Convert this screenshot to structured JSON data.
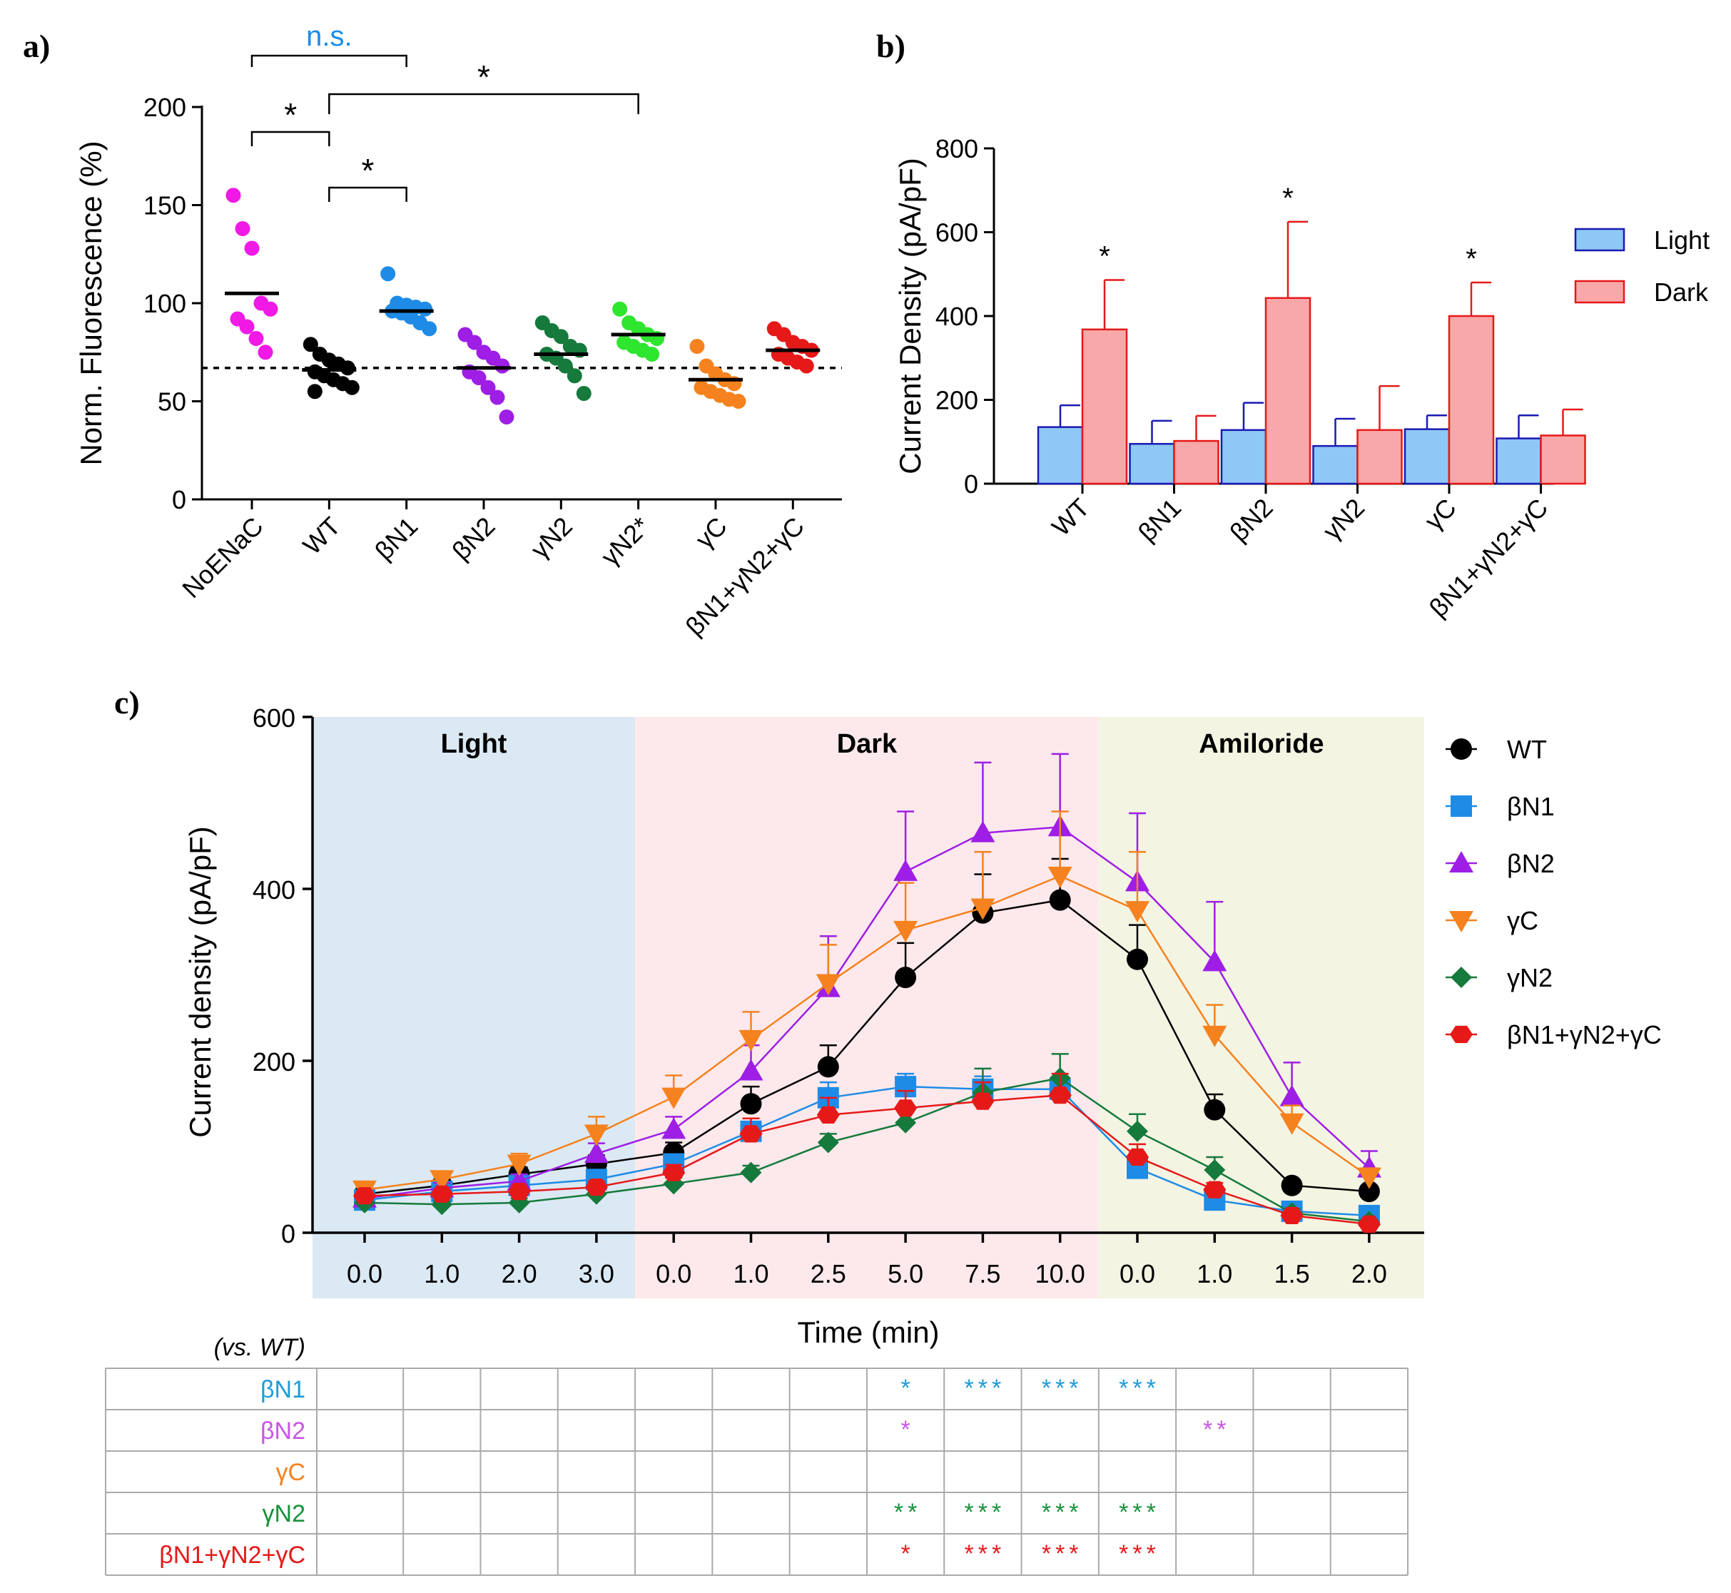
{
  "panel_labels": {
    "a": "a)",
    "b": "b)",
    "c": "c)"
  },
  "chart_data": [
    {
      "panel": "a",
      "type": "scatter",
      "ylabel": "Norm. Fluorescence (%)",
      "ylim": [
        0,
        200
      ],
      "yticks": [
        0,
        50,
        100,
        150,
        200
      ],
      "reference_line": 67,
      "categories": [
        "NoENaC",
        "WT",
        "βN1",
        "βN2",
        "γN2",
        "γN2*",
        "γC",
        "βN1+γN2+γC"
      ],
      "colors": [
        "#f019e6",
        "#000000",
        "#1e8ce6",
        "#9e1ee6",
        "#157a3c",
        "#2ee62e",
        "#f5821e",
        "#e61919"
      ],
      "points": [
        [
          155,
          138,
          128,
          100,
          97,
          92,
          88,
          82,
          75
        ],
        [
          79,
          74,
          71,
          69,
          67,
          65,
          63,
          61,
          59,
          57,
          55
        ],
        [
          115,
          100,
          99,
          98,
          97,
          96,
          95,
          93,
          90,
          87
        ],
        [
          84,
          80,
          75,
          72,
          68,
          65,
          62,
          57,
          52,
          42
        ],
        [
          90,
          86,
          83,
          78,
          76,
          74,
          72,
          68,
          63,
          54
        ],
        [
          97,
          90,
          87,
          84,
          82,
          80,
          78,
          76,
          74
        ],
        [
          78,
          68,
          64,
          61,
          59,
          57,
          55,
          53,
          51,
          50
        ],
        [
          87,
          84,
          80,
          78,
          76,
          74,
          72,
          70,
          68
        ]
      ],
      "means": [
        105,
        66,
        96,
        67,
        74,
        84,
        61,
        76
      ],
      "annotations": [
        {
          "from": "NoENaC",
          "to": "βN1",
          "label": "n.s.",
          "color": "#1e8ce6"
        },
        {
          "from": "WT",
          "to": "γN2*",
          "label": "*",
          "color": "#000000"
        },
        {
          "from": "NoENaC",
          "to": "WT",
          "label": "*",
          "color": "#000000"
        },
        {
          "from": "WT",
          "to": "βN1",
          "label": "*",
          "color": "#000000"
        }
      ]
    },
    {
      "panel": "b",
      "type": "bar",
      "ylabel": "Current Density (pA/pF)",
      "ylim": [
        0,
        800
      ],
      "yticks": [
        0,
        200,
        400,
        600,
        800
      ],
      "categories": [
        "WT",
        "βN1",
        "βN2",
        "γN2",
        "γC",
        "βN1+γN2+γC"
      ],
      "series": [
        {
          "name": "Light",
          "values": [
            135,
            95,
            128,
            90,
            130,
            108
          ],
          "errors": [
            52,
            55,
            65,
            65,
            33,
            55
          ],
          "fill": "#8ec8f5",
          "stroke": "#1a1ab3"
        },
        {
          "name": "Dark",
          "values": [
            368,
            102,
            443,
            128,
            400,
            115
          ],
          "errors": [
            118,
            60,
            182,
            105,
            80,
            62
          ],
          "fill": "#f8a8a8",
          "stroke": "#e61919"
        }
      ],
      "significance": [
        "*",
        "",
        "*",
        "",
        "*",
        ""
      ]
    },
    {
      "panel": "c",
      "type": "line",
      "xlabel": "Time (min)",
      "ylabel": "Current density (pA/pF)",
      "ylim": [
        0,
        600
      ],
      "yticks": [
        0,
        200,
        400,
        600
      ],
      "x": [
        "0.0",
        "1.0",
        "2.0",
        "3.0",
        "0.0",
        "1.0",
        "2.5",
        "5.0",
        "7.5",
        "10.0",
        "0.0",
        "1.0",
        "1.5",
        "2.0"
      ],
      "regions": [
        {
          "label": "Light",
          "start": 0,
          "end": 3,
          "color": "#dbe9f4"
        },
        {
          "label": "Dark",
          "start": 4,
          "end": 9,
          "color": "#fde9ec"
        },
        {
          "label": "Amiloride",
          "start": 10,
          "end": 13,
          "color": "#f4f4e3"
        }
      ],
      "series": [
        {
          "name": "WT",
          "marker": "circle",
          "color": "#000000",
          "fill": "#000000",
          "values": [
            45,
            55,
            68,
            80,
            93,
            150,
            193,
            297,
            372,
            387,
            318,
            143,
            55,
            48
          ],
          "errors": [
            5,
            6,
            8,
            10,
            12,
            20,
            25,
            40,
            45,
            48,
            40,
            18,
            6,
            5
          ]
        },
        {
          "name": "βN1",
          "marker": "square",
          "color": "#1e8ce6",
          "fill": "#1e8ce6",
          "values": [
            38,
            48,
            55,
            62,
            80,
            118,
            157,
            170,
            167,
            167,
            75,
            38,
            25,
            20
          ],
          "errors": [
            4,
            5,
            6,
            7,
            10,
            15,
            18,
            15,
            15,
            12,
            10,
            6,
            4,
            4
          ]
        },
        {
          "name": "βN2",
          "marker": "triangle",
          "color": "#9e1ee6",
          "fill": "#9e1ee6",
          "values": [
            40,
            52,
            60,
            92,
            120,
            188,
            285,
            420,
            465,
            472,
            408,
            315,
            158,
            75
          ],
          "errors": [
            5,
            6,
            8,
            12,
            15,
            30,
            60,
            70,
            82,
            85,
            80,
            70,
            40,
            20
          ]
        },
        {
          "name": "γC",
          "marker": "triangle-down",
          "color": "#f5821e",
          "fill": "#f5821e",
          "values": [
            50,
            62,
            80,
            115,
            158,
            225,
            290,
            352,
            378,
            415,
            375,
            230,
            128,
            65
          ],
          "errors": [
            6,
            8,
            12,
            20,
            25,
            32,
            45,
            55,
            65,
            75,
            68,
            35,
            20,
            10
          ]
        },
        {
          "name": "γN2",
          "marker": "diamond",
          "color": "#157a3c",
          "fill": "#157a3c",
          "values": [
            35,
            33,
            35,
            45,
            57,
            70,
            105,
            128,
            163,
            180,
            118,
            73,
            23,
            13
          ],
          "errors": [
            4,
            4,
            5,
            6,
            7,
            8,
            10,
            12,
            28,
            28,
            20,
            15,
            5,
            3
          ]
        },
        {
          "name": "βN1+γN2+γC",
          "marker": "hexagon",
          "color": "#e61919",
          "fill": "#e61919",
          "values": [
            43,
            45,
            48,
            53,
            70,
            115,
            137,
            145,
            153,
            160,
            88,
            50,
            20,
            10
          ],
          "errors": [
            5,
            5,
            6,
            7,
            9,
            18,
            20,
            20,
            22,
            25,
            15,
            8,
            4,
            3
          ]
        }
      ]
    }
  ],
  "significance_table": {
    "title": "(vs. WT)",
    "columns": 14,
    "rows": [
      {
        "label": "βN1",
        "color": "#1e9bd7",
        "cells": [
          "",
          "",
          "",
          "",
          "",
          "",
          "",
          "*",
          "***",
          "***",
          "***",
          "",
          "",
          ""
        ]
      },
      {
        "label": "βN2",
        "color": "#c855e6",
        "cells": [
          "",
          "",
          "",
          "",
          "",
          "",
          "",
          "*",
          "",
          "",
          "",
          "**",
          "",
          ""
        ]
      },
      {
        "label": "γC",
        "color": "#f5821e",
        "cells": [
          "",
          "",
          "",
          "",
          "",
          "",
          "",
          "",
          "",
          "",
          "",
          "",
          "",
          ""
        ]
      },
      {
        "label": "γN2",
        "color": "#19913c",
        "cells": [
          "",
          "",
          "",
          "",
          "",
          "",
          "",
          "**",
          "***",
          "***",
          "***",
          "",
          "",
          ""
        ]
      },
      {
        "label": "βN1+γN2+γC",
        "color": "#e61919",
        "cells": [
          "",
          "",
          "",
          "",
          "",
          "",
          "",
          "*",
          "***",
          "***",
          "***",
          "",
          "",
          ""
        ]
      }
    ]
  }
}
